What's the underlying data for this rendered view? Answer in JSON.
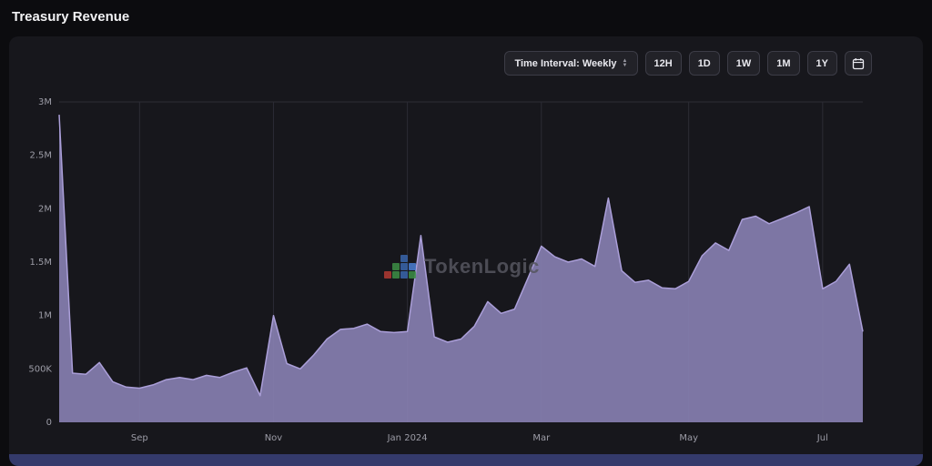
{
  "page": {
    "title": "Treasury Revenue"
  },
  "toolbar": {
    "interval_label": "Time Interval: Weekly",
    "range_buttons": [
      {
        "label": "12H"
      },
      {
        "label": "1D"
      },
      {
        "label": "1W"
      },
      {
        "label": "1M"
      },
      {
        "label": "1Y"
      }
    ],
    "calendar_icon": "calendar-icon"
  },
  "watermark": {
    "text": "TokenLogic",
    "logo_cells": [
      {
        "col": 1,
        "row": 3,
        "color": "#b23a33"
      },
      {
        "col": 2,
        "row": 2,
        "color": "#3d8f46"
      },
      {
        "col": 2,
        "row": 3,
        "color": "#3d8f46"
      },
      {
        "col": 3,
        "row": 1,
        "color": "#3a66ad"
      },
      {
        "col": 3,
        "row": 2,
        "color": "#3a66ad"
      },
      {
        "col": 3,
        "row": 3,
        "color": "#3a66ad"
      },
      {
        "col": 4,
        "row": 2,
        "color": "#4a7fd4"
      },
      {
        "col": 4,
        "row": 3,
        "color": "#3d8f46"
      }
    ]
  },
  "colors": {
    "page_bg": "#0c0c0f",
    "card_bg": "#17171c",
    "button_bg": "#222228",
    "button_border": "#3c3c46",
    "grid_line": "#2c2c35",
    "axis_text": "#9c9ca6",
    "area_fill": "#877fb0",
    "area_stroke": "#ab9fd9",
    "bottom_strip": "#343a6b"
  },
  "chart_data": {
    "type": "area",
    "title": "Treasury Revenue",
    "xlabel": "",
    "ylabel": "",
    "unit": "millions",
    "ylim": [
      0,
      3
    ],
    "grid": "vertical",
    "legend": "none",
    "series": [
      {
        "name": "Treasury Revenue (weekly)",
        "values": [
          2.88,
          0.46,
          0.45,
          0.56,
          0.38,
          0.33,
          0.32,
          0.35,
          0.4,
          0.42,
          0.4,
          0.44,
          0.42,
          0.47,
          0.51,
          0.25,
          1.0,
          0.55,
          0.5,
          0.63,
          0.78,
          0.87,
          0.88,
          0.92,
          0.85,
          0.84,
          0.85,
          1.75,
          0.8,
          0.75,
          0.78,
          0.9,
          1.13,
          1.02,
          1.06,
          1.35,
          1.65,
          1.55,
          1.5,
          1.53,
          1.46,
          2.1,
          1.42,
          1.31,
          1.33,
          1.26,
          1.25,
          1.32,
          1.56,
          1.68,
          1.61,
          1.9,
          1.93,
          1.86,
          1.91,
          1.96,
          2.02,
          1.25,
          1.32,
          1.48,
          0.85
        ]
      }
    ],
    "x_ticks": [
      {
        "label": "Sep",
        "index": 6
      },
      {
        "label": "Nov",
        "index": 16
      },
      {
        "label": "Jan 2024",
        "index": 26
      },
      {
        "label": "Mar",
        "index": 36
      },
      {
        "label": "May",
        "index": 47
      },
      {
        "label": "Jul",
        "index": 57
      }
    ],
    "y_ticks": [
      {
        "label": "0",
        "value": 0
      },
      {
        "label": "500K",
        "value": 0.5
      },
      {
        "label": "1M",
        "value": 1
      },
      {
        "label": "1.5M",
        "value": 1.5
      },
      {
        "label": "2M",
        "value": 2
      },
      {
        "label": "2.5M",
        "value": 2.5
      },
      {
        "label": "3M",
        "value": 3
      }
    ]
  }
}
